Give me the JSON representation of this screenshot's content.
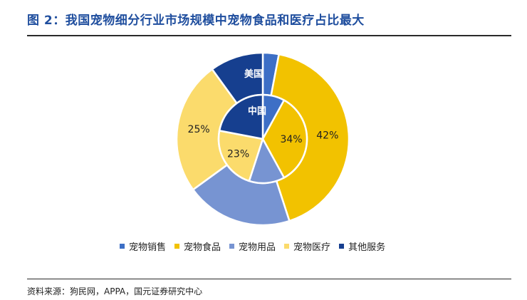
{
  "header": {
    "title": "图 2：我国宠物细分行业市场规模中宠物食品和医疗占比最大"
  },
  "footer": {
    "source": "资料来源：狗民网，APPA，国元证券研究中心"
  },
  "chart_data": {
    "type": "pie",
    "variant": "nested-donut",
    "categories": [
      "宠物销售",
      "宠物食品",
      "宠物用品",
      "宠物医疗",
      "其他服务"
    ],
    "colors": [
      "#3d6fc6",
      "#f2c200",
      "#7794d2",
      "#fbdb6c",
      "#163f8f"
    ],
    "rings": [
      {
        "name": "中国",
        "position": "inner",
        "values": [
          8,
          34,
          13,
          23,
          22
        ],
        "labels": [
          "",
          "34%",
          "",
          "23%",
          ""
        ]
      },
      {
        "name": "美国",
        "position": "outer",
        "values": [
          3,
          42,
          20,
          25,
          10
        ],
        "labels": [
          "",
          "42%",
          "",
          "25%",
          ""
        ]
      }
    ],
    "legend_position": "bottom"
  }
}
